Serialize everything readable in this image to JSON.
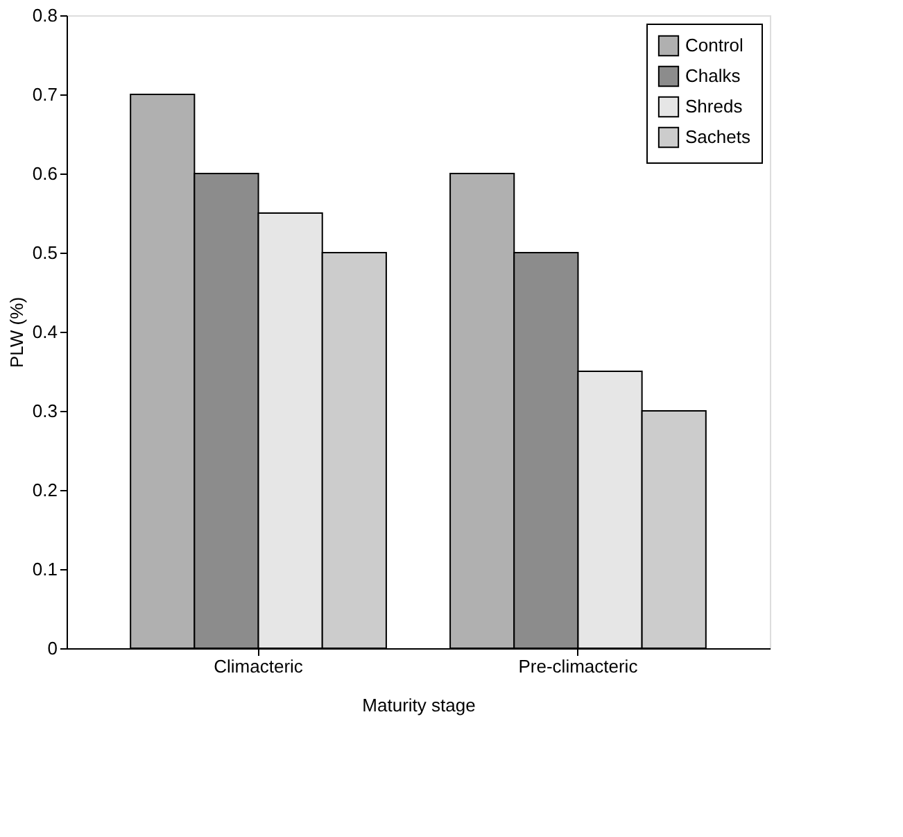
{
  "chart_data": {
    "type": "bar",
    "xlabel": "Maturity stage",
    "ylabel": "PLW (%)",
    "categories": [
      "Climacteric",
      "Pre-climacteric"
    ],
    "series": [
      {
        "name": "Control",
        "color": "#b0b0b0",
        "values": [
          0.7,
          0.6
        ]
      },
      {
        "name": "Chalks",
        "color": "#8c8c8c",
        "values": [
          0.6,
          0.5
        ]
      },
      {
        "name": "Shreds",
        "color": "#e6e6e6",
        "values": [
          0.55,
          0.35
        ]
      },
      {
        "name": "Sachets",
        "color": "#cccccc",
        "values": [
          0.5,
          0.3
        ]
      }
    ],
    "ylim": [
      0,
      0.8
    ],
    "yticks": [
      0,
      0.1,
      0.2,
      0.3,
      0.4,
      0.5,
      0.6,
      0.7,
      0.8
    ],
    "grid": false,
    "legend": "top right"
  }
}
